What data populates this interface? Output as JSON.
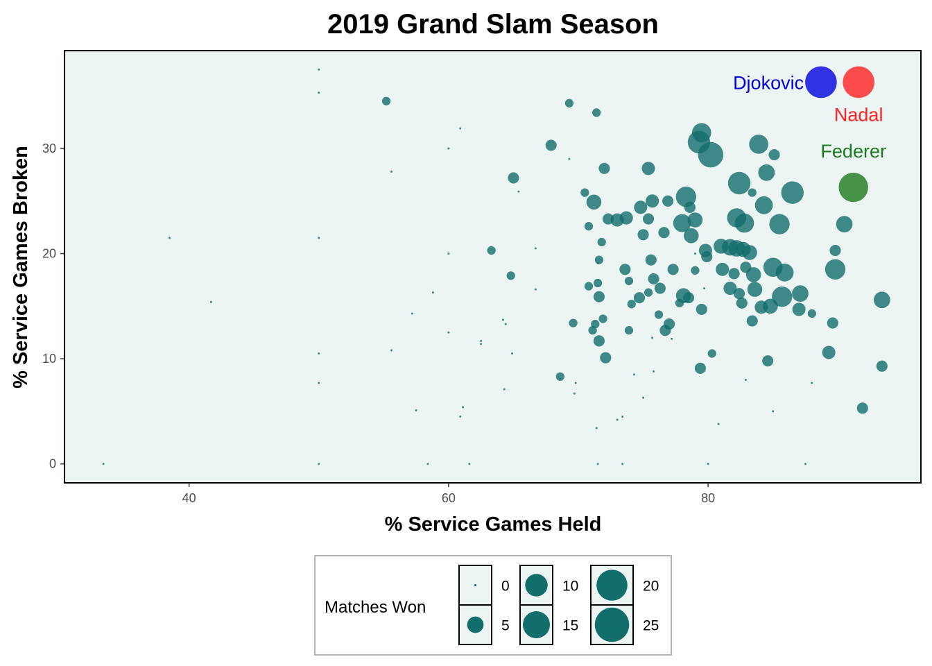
{
  "chart_data": {
    "type": "scatter",
    "title": "2019 Grand Slam Season",
    "xlabel": "% Service Games Held",
    "ylabel": "% Service Games Broken",
    "xlim": [
      30.4,
      96.4
    ],
    "ylim": [
      -1.8,
      39.3
    ],
    "xticks": [
      40,
      60,
      80
    ],
    "yticks": [
      0,
      10,
      20,
      30
    ],
    "grid": false,
    "point_color": "#126e6b",
    "panel_color": "#edf5f4",
    "legend": {
      "title": "Matches Won",
      "values": [
        0,
        5,
        10,
        15,
        20,
        25
      ],
      "placement": "bottom"
    },
    "points_columns": [
      "held",
      "broken",
      "matches_won"
    ],
    "points": [
      [
        50,
        37.5,
        0
      ],
      [
        50,
        35.3,
        0
      ],
      [
        55.2,
        34.5,
        1
      ],
      [
        60.9,
        31.9,
        0
      ],
      [
        60,
        30,
        0
      ],
      [
        69.3,
        34.3,
        1
      ],
      [
        71.4,
        33.4,
        1
      ],
      [
        55.6,
        27.8,
        0
      ],
      [
        67.9,
        30.3,
        2
      ],
      [
        69.3,
        29,
        0
      ],
      [
        65,
        27.2,
        2
      ],
      [
        65.4,
        25.9,
        0
      ],
      [
        72,
        28.1,
        2
      ],
      [
        75.4,
        28.1,
        3
      ],
      [
        70.5,
        25.8,
        1
      ],
      [
        71.2,
        24.9,
        4
      ],
      [
        50,
        21.5,
        0
      ],
      [
        38.5,
        21.5,
        0
      ],
      [
        41.7,
        15.4,
        0
      ],
      [
        33.4,
        0,
        0
      ],
      [
        50,
        10.5,
        0
      ],
      [
        50,
        7.7,
        0
      ],
      [
        50,
        0,
        0
      ],
      [
        55.6,
        10.8,
        0
      ],
      [
        57.2,
        14.3,
        0
      ],
      [
        58.8,
        16.3,
        0
      ],
      [
        60,
        20,
        0
      ],
      [
        60,
        12.5,
        0
      ],
      [
        57.5,
        5.1,
        0
      ],
      [
        58.4,
        0,
        0
      ],
      [
        61.6,
        0,
        0
      ],
      [
        60.9,
        4.5,
        0
      ],
      [
        61.1,
        5.4,
        0
      ],
      [
        62.5,
        11.7,
        0
      ],
      [
        62.5,
        11.4,
        0
      ],
      [
        63.3,
        20.3,
        1
      ],
      [
        64.8,
        17.9,
        1
      ],
      [
        66.7,
        20.5,
        0
      ],
      [
        66.7,
        16.6,
        0
      ],
      [
        64.2,
        13.7,
        0
      ],
      [
        64.4,
        13.3,
        0
      ],
      [
        64.9,
        10.5,
        0
      ],
      [
        64.3,
        7.1,
        0
      ],
      [
        68.6,
        8.3,
        1
      ],
      [
        69.6,
        13.4,
        1
      ],
      [
        69.8,
        7.7,
        0
      ],
      [
        69.7,
        6.7,
        0
      ],
      [
        71.5,
        0,
        0
      ],
      [
        71.4,
        3.4,
        0
      ],
      [
        73.4,
        0,
        0
      ],
      [
        73,
        4.2,
        0
      ],
      [
        73.4,
        4.5,
        0
      ],
      [
        74.3,
        8.5,
        0
      ],
      [
        75,
        6.3,
        0
      ],
      [
        75.8,
        8.8,
        0
      ],
      [
        80,
        0,
        0
      ],
      [
        80.8,
        3.8,
        0
      ],
      [
        82.9,
        8,
        0
      ],
      [
        85,
        5,
        0
      ],
      [
        87.5,
        0,
        0
      ],
      [
        88,
        7.7,
        0
      ],
      [
        91.9,
        5.3,
        2
      ],
      [
        93.4,
        9.3,
        2
      ],
      [
        93.4,
        15.6,
        5
      ],
      [
        90.5,
        22.8,
        5
      ],
      [
        89.8,
        20.3,
        2
      ],
      [
        89.8,
        18.5,
        8
      ],
      [
        89.6,
        13.4,
        2
      ],
      [
        89.3,
        10.6,
        3
      ],
      [
        88,
        14.3,
        1
      ],
      [
        86.5,
        25.8,
        10
      ],
      [
        85.1,
        29.4,
        2
      ],
      [
        84.5,
        27.7,
        5
      ],
      [
        83.9,
        30.4,
        7
      ],
      [
        83.4,
        25.8,
        1
      ],
      [
        82.4,
        26.7,
        10
      ],
      [
        84.3,
        24.6,
        6
      ],
      [
        85.5,
        22.8,
        8
      ],
      [
        82.2,
        23.4,
        7
      ],
      [
        82.8,
        22.9,
        7
      ],
      [
        79.5,
        31.5,
        7
      ],
      [
        79.3,
        30.6,
        10
      ],
      [
        80.2,
        29.4,
        13
      ],
      [
        78.3,
        25.4,
        8
      ],
      [
        76.9,
        25,
        2
      ],
      [
        75.7,
        25,
        3
      ],
      [
        74.8,
        24.4,
        3
      ],
      [
        75.4,
        23.3,
        2
      ],
      [
        73.7,
        23.4,
        3
      ],
      [
        73,
        23.2,
        3
      ],
      [
        72.3,
        23.3,
        2
      ],
      [
        70.8,
        22.6,
        1
      ],
      [
        71.8,
        21.1,
        1
      ],
      [
        75,
        21.8,
        2
      ],
      [
        76.6,
        22,
        2
      ],
      [
        78,
        22.9,
        6
      ],
      [
        78.6,
        24.4,
        2
      ],
      [
        79,
        23.2,
        4
      ],
      [
        78.7,
        21.7,
        4
      ],
      [
        79.8,
        20.3,
        3
      ],
      [
        79.9,
        19.7,
        2
      ],
      [
        81,
        20.7,
        4
      ],
      [
        81.7,
        20.6,
        5
      ],
      [
        82.2,
        20.5,
        5
      ],
      [
        82.7,
        20.4,
        4
      ],
      [
        83.2,
        20.1,
        4
      ],
      [
        81.1,
        18.5,
        3
      ],
      [
        82,
        18.1,
        2
      ],
      [
        82.9,
        18.7,
        2
      ],
      [
        83.5,
        18,
        4
      ],
      [
        85,
        18.7,
        7
      ],
      [
        85.9,
        18.2,
        6
      ],
      [
        85.7,
        15.9,
        8
      ],
      [
        87.1,
        16.2,
        5
      ],
      [
        87,
        14.7,
        3
      ],
      [
        83.6,
        16.6,
        4
      ],
      [
        84.8,
        15,
        4
      ],
      [
        84.1,
        14.9,
        3
      ],
      [
        82.4,
        16.2,
        2
      ],
      [
        82.6,
        15.3,
        2
      ],
      [
        81.7,
        16.7,
        3
      ],
      [
        83.4,
        13.6,
        2
      ],
      [
        84.6,
        9.8,
        2
      ],
      [
        80.3,
        10.5,
        1
      ],
      [
        79.4,
        9.1,
        2
      ],
      [
        79.5,
        14.7,
        2
      ],
      [
        78.1,
        16,
        4
      ],
      [
        78.5,
        15.8,
        2
      ],
      [
        77.8,
        15.3,
        1
      ],
      [
        77.3,
        18.5,
        2
      ],
      [
        79,
        18.4,
        1
      ],
      [
        75.6,
        19.4,
        2
      ],
      [
        75.8,
        17.6,
        2
      ],
      [
        76.3,
        16.7,
        2
      ],
      [
        73.9,
        17.4,
        1
      ],
      [
        73.6,
        18.5,
        2
      ],
      [
        71.6,
        19.4,
        1
      ],
      [
        71.5,
        17.2,
        1
      ],
      [
        70.8,
        16.9,
        1
      ],
      [
        71.6,
        15.9,
        2
      ],
      [
        74.7,
        15.8,
        2
      ],
      [
        74.1,
        15.2,
        1
      ],
      [
        75.4,
        16.3,
        1
      ],
      [
        76.2,
        14.2,
        1
      ],
      [
        77,
        13.3,
        2
      ],
      [
        76.7,
        12.7,
        2
      ],
      [
        73.9,
        12.7,
        1
      ],
      [
        71.9,
        13.8,
        1
      ],
      [
        71.3,
        13.3,
        1
      ],
      [
        71.1,
        12.7,
        1
      ],
      [
        71.6,
        11.7,
        2
      ],
      [
        72.1,
        10.1,
        2
      ],
      [
        75.7,
        12,
        0
      ],
      [
        77.2,
        11.9,
        0
      ],
      [
        71.5,
        19.1,
        0
      ],
      [
        79.7,
        16.7,
        0
      ],
      [
        79,
        20,
        0
      ]
    ],
    "highlights": [
      {
        "name": "Djokovic",
        "held": 88.7,
        "broken": 36.3,
        "matches_won": 21,
        "color": "#0000dd",
        "label_pos": "left"
      },
      {
        "name": "Nadal",
        "held": 91.6,
        "broken": 36.3,
        "matches_won": 21,
        "color": "#ff2020",
        "label_pos": "below"
      },
      {
        "name": "Federer",
        "held": 91.2,
        "broken": 26.3,
        "matches_won": 18,
        "color": "#1b7a1b",
        "label_pos": "above"
      }
    ]
  }
}
